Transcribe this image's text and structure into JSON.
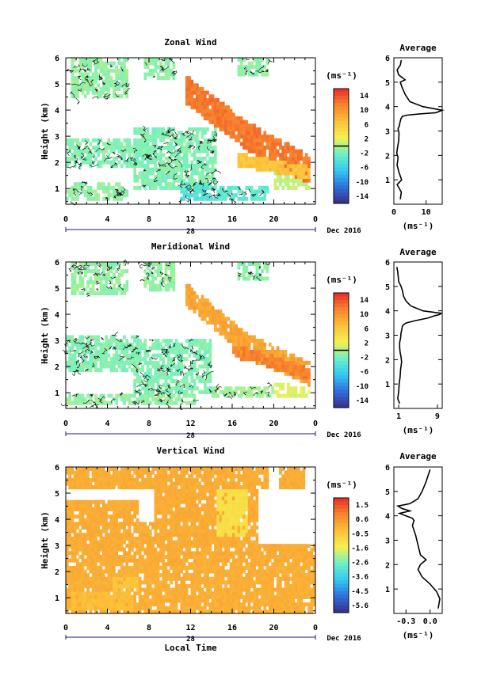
{
  "chart_data": [
    {
      "type": "heatmap",
      "title": "Zonal Wind",
      "ylabel": "Height (km)",
      "units": "(ms⁻¹)",
      "x_ticks": [
        "0",
        "4",
        "8",
        "12",
        "16",
        "20",
        "0"
      ],
      "y_ticks": [
        "1",
        "2",
        "3",
        "4",
        "5",
        "6"
      ],
      "date_day": "28",
      "date_month": "Dec 2016",
      "xlim": [
        0,
        24
      ],
      "ylim": [
        0.4,
        6.0
      ],
      "colorbar": {
        "labels": [
          "14",
          "10",
          "6",
          "2",
          "-2",
          "-6",
          "-10",
          "-14"
        ],
        "range": [
          -16,
          16
        ]
      },
      "color_stops": [
        "#3a2e86",
        "#2f6fdc",
        "#33c9f2",
        "#6ef0c8",
        "#f6f050",
        "#fbc03a",
        "#f7842c",
        "#ea2b2b"
      ],
      "fields": [
        {
          "t0": 0.0,
          "t1": 7.0,
          "z0": 1.8,
          "z1": 2.9,
          "value": -1.5
        },
        {
          "t0": 0.5,
          "t1": 6.0,
          "z0": 4.4,
          "z1": 5.95,
          "value": -1.0
        },
        {
          "t0": 6.5,
          "t1": 14.5,
          "z0": 0.9,
          "z1": 3.3,
          "value": -1.5
        },
        {
          "t0": 11.0,
          "t1": 14.0,
          "z0": 0.5,
          "z1": 1.3,
          "value": -4.0
        },
        {
          "t0": 14.0,
          "t1": 19.5,
          "z0": 0.5,
          "z1": 1.1,
          "value": -3.0
        },
        {
          "t0": 0.5,
          "t1": 5.5,
          "z0": 0.9,
          "z1": 1.3,
          "value": -1.0
        },
        {
          "t0": 0.0,
          "t1": 6.0,
          "z0": 0.5,
          "z1": 0.9,
          "value": -1.0
        },
        {
          "t0": 7.5,
          "t1": 10.5,
          "z0": 5.2,
          "z1": 5.95,
          "value": -1.0
        },
        {
          "t0": 16.5,
          "t1": 19.5,
          "z0": 5.3,
          "z1": 5.95,
          "value": -1.0
        },
        {
          "t0": 20.0,
          "t1": 23.5,
          "z0": 1.0,
          "z1": 1.6,
          "value": 0.5
        }
      ],
      "bands": [
        {
          "tc0": 11.5,
          "zc0": 4.8,
          "tc1": 17.5,
          "zc1": 3.0,
          "tc2": 23.5,
          "zc2": 1.7,
          "width": 2.0,
          "thick": 1.1,
          "value": 12.0
        },
        {
          "tc0": 16.5,
          "zc0": 2.1,
          "tc1": 19.5,
          "zc1": 1.9,
          "tc2": 23.5,
          "zc2": 1.6,
          "width": 2.0,
          "thick": 0.5,
          "value": 6.5
        }
      ],
      "profile": {
        "title": "Average",
        "units": "(ms⁻¹)",
        "x_ticks": [
          "0",
          "10"
        ],
        "xlim": [
          0,
          15
        ],
        "x": [
          2.0,
          2.3,
          1.0,
          2.4,
          1.6,
          1.0,
          1.3,
          0.9,
          1.1,
          1.5,
          1.6,
          1.3,
          1.7,
          1.8,
          2.0,
          2.2,
          2.4,
          2.6,
          4.0,
          8.0,
          13.0,
          15.0,
          9.0,
          5.0,
          3.5,
          2.5,
          2.0,
          3.5,
          1.5,
          1.0,
          2.0,
          2.3
        ],
        "z": [
          0.2,
          0.5,
          0.8,
          1.0,
          1.3,
          1.6,
          1.9,
          2.1,
          2.3,
          2.6,
          2.9,
          3.1,
          3.2,
          3.3,
          3.4,
          3.5,
          3.55,
          3.6,
          3.65,
          3.7,
          3.75,
          3.85,
          4.0,
          4.2,
          4.5,
          4.8,
          5.0,
          5.1,
          5.3,
          5.5,
          5.7,
          5.9
        ]
      }
    },
    {
      "type": "heatmap",
      "title": "Meridional Wind",
      "ylabel": "Height (km)",
      "units": "(ms⁻¹)",
      "x_ticks": [
        "0",
        "4",
        "8",
        "12",
        "16",
        "20",
        "0"
      ],
      "y_ticks": [
        "1",
        "2",
        "3",
        "4",
        "5",
        "6"
      ],
      "date_day": "28",
      "date_month": "Dec 2016",
      "xlim": [
        0,
        24
      ],
      "ylim": [
        0.4,
        6.0
      ],
      "colorbar": {
        "labels": [
          "14",
          "10",
          "6",
          "2",
          "-2",
          "-6",
          "-10",
          "-14"
        ],
        "range": [
          -16,
          16
        ]
      },
      "color_stops": [
        "#3a2e86",
        "#2f6fdc",
        "#33c9f2",
        "#6ef0c8",
        "#f6f050",
        "#fbc03a",
        "#f7842c",
        "#ea2b2b"
      ],
      "fields": [
        {
          "t0": 0.0,
          "t1": 7.0,
          "z0": 1.8,
          "z1": 3.2,
          "value": -1.5
        },
        {
          "t0": 0.5,
          "t1": 6.0,
          "z0": 4.8,
          "z1": 5.95,
          "value": -1.0
        },
        {
          "t0": 6.5,
          "t1": 14.0,
          "z0": 1.0,
          "z1": 3.1,
          "value": -1.5
        },
        {
          "t0": 14.0,
          "t1": 20.0,
          "z0": 0.8,
          "z1": 1.3,
          "value": -0.5
        },
        {
          "t0": 0.0,
          "t1": 12.5,
          "z0": 0.5,
          "z1": 1.0,
          "value": -1.0
        },
        {
          "t0": 7.5,
          "t1": 10.5,
          "z0": 4.9,
          "z1": 5.95,
          "value": -1.0
        },
        {
          "t0": 16.5,
          "t1": 19.5,
          "z0": 5.3,
          "z1": 5.95,
          "value": -1.0
        },
        {
          "t0": 20.0,
          "t1": 23.5,
          "z0": 0.8,
          "z1": 1.4,
          "value": 1.5
        }
      ],
      "bands": [
        {
          "tc0": 11.5,
          "zc0": 4.8,
          "tc1": 17.5,
          "zc1": 2.8,
          "tc2": 23.5,
          "zc2": 1.7,
          "width": 1.8,
          "thick": 0.9,
          "value": 9.0
        },
        {
          "tc0": 16.0,
          "zc0": 2.6,
          "tc1": 19.0,
          "zc1": 2.3,
          "tc2": 23.5,
          "zc2": 1.7,
          "width": 2.0,
          "thick": 0.5,
          "value": 11.5
        }
      ],
      "profile": {
        "title": "Average",
        "units": "(ms⁻¹)",
        "x_ticks": [
          "1",
          "9"
        ],
        "xlim": [
          0,
          10
        ],
        "x": [
          1.2,
          0.8,
          1.0,
          1.1,
          1.3,
          1.4,
          1.6,
          1.5,
          1.3,
          1.2,
          1.2,
          1.4,
          1.5,
          1.6,
          1.7,
          1.8,
          2.5,
          4.5,
          7.0,
          8.5,
          9.5,
          9.8,
          6.0,
          3.5,
          2.5,
          2.0,
          1.8,
          1.5,
          1.0,
          0.9,
          0.8,
          0.6
        ],
        "z": [
          0.2,
          0.4,
          0.7,
          1.0,
          1.3,
          1.6,
          1.9,
          2.1,
          2.3,
          2.5,
          2.7,
          2.9,
          3.1,
          3.2,
          3.3,
          3.4,
          3.5,
          3.6,
          3.7,
          3.8,
          3.85,
          3.9,
          4.0,
          4.2,
          4.4,
          4.6,
          4.8,
          5.0,
          5.2,
          5.4,
          5.6,
          5.8
        ]
      }
    },
    {
      "type": "heatmap",
      "title": "Vertical Wind",
      "ylabel": "Height (km)",
      "xlabel": "Local Time",
      "units": "(ms⁻¹)",
      "x_ticks": [
        "0",
        "4",
        "8",
        "12",
        "16",
        "20",
        "0"
      ],
      "y_ticks": [
        "1",
        "2",
        "3",
        "4",
        "5",
        "6"
      ],
      "date_day": "28",
      "date_month": "Dec 2016",
      "xlim": [
        0,
        24
      ],
      "ylim": [
        0.4,
        6.0
      ],
      "colorbar": {
        "labels": [
          "1.5",
          "0.6",
          "-0.5",
          "-1.6",
          "-2.6",
          "-3.6",
          "-4.5",
          "-5.6"
        ],
        "range": [
          -6.2,
          2.0
        ]
      },
      "color_stops": [
        "#3a2e86",
        "#2f6fdc",
        "#33c9f2",
        "#6ef0c8",
        "#f6f050",
        "#fbc03a",
        "#f7842c",
        "#ea2b2b"
      ],
      "fields": [
        {
          "t0": 0.0,
          "t1": 24.0,
          "z0": 0.4,
          "z1": 2.3,
          "value": 0.0
        },
        {
          "t0": 0.0,
          "t1": 18.5,
          "z0": 2.3,
          "z1": 3.9,
          "value": 0.05
        },
        {
          "t0": 18.5,
          "t1": 24.0,
          "z0": 2.3,
          "z1": 3.1,
          "value": 0.05
        },
        {
          "t0": 0.0,
          "t1": 7.0,
          "z0": 3.9,
          "z1": 4.7,
          "value": 0.05
        },
        {
          "t0": 8.5,
          "t1": 18.5,
          "z0": 3.9,
          "z1": 5.2,
          "value": 0.05
        },
        {
          "t0": 0.0,
          "t1": 19.5,
          "z0": 5.2,
          "z1": 5.95,
          "value": 0.05
        },
        {
          "t0": 20.5,
          "t1": 23.0,
          "z0": 5.2,
          "z1": 5.95,
          "value": 0.05
        },
        {
          "t0": 14.5,
          "t1": 17.5,
          "z0": 3.3,
          "z1": 5.2,
          "value": -1.1
        },
        {
          "t0": 0.5,
          "t1": 6.5,
          "z0": 0.5,
          "z1": 1.2,
          "value": -0.3
        },
        {
          "t0": 4.5,
          "t1": 7.0,
          "z0": 1.2,
          "z1": 1.8,
          "value": -0.5
        }
      ],
      "bands": [],
      "profile": {
        "title": "Average",
        "units": "(ms⁻¹)",
        "x_ticks": [
          "-0.3",
          "0.0"
        ],
        "xlim": [
          -0.45,
          0.15
        ],
        "x": [
          0.1,
          0.12,
          0.08,
          0.0,
          -0.1,
          -0.15,
          -0.12,
          -0.05,
          -0.12,
          -0.15,
          -0.18,
          -0.22,
          -0.2,
          -0.22,
          -0.3,
          -0.38,
          -0.25,
          -0.35,
          -0.4,
          -0.25,
          -0.15,
          -0.1,
          -0.05,
          -0.02,
          0.0
        ],
        "z": [
          0.2,
          0.6,
          0.9,
          1.2,
          1.5,
          1.8,
          2.0,
          2.2,
          2.4,
          2.8,
          3.2,
          3.6,
          3.8,
          3.9,
          4.0,
          4.1,
          4.2,
          4.3,
          4.4,
          4.5,
          4.7,
          5.0,
          5.4,
          5.7,
          5.9
        ]
      }
    }
  ]
}
